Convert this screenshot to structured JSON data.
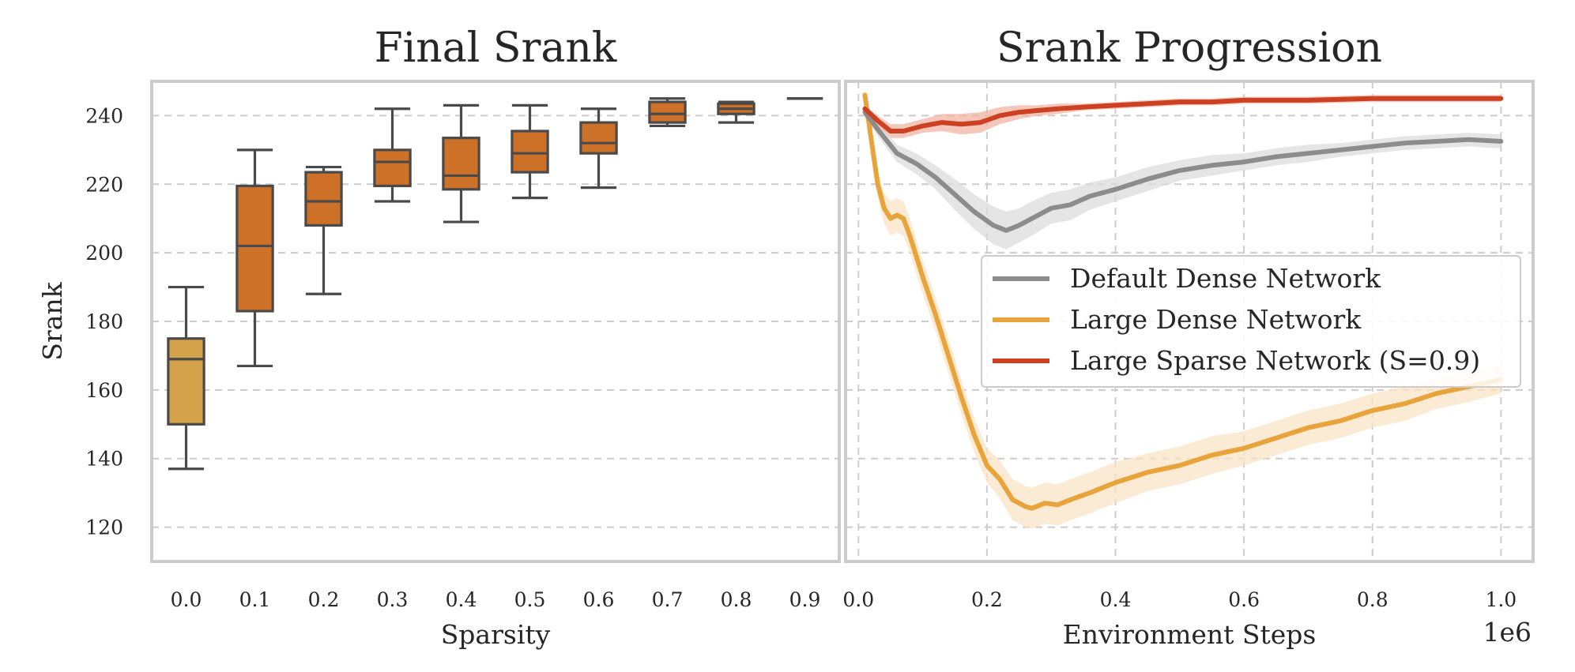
{
  "chart_data": [
    {
      "type": "box",
      "title": "Final Srank",
      "xlabel": "Sparsity",
      "ylabel": "Srank",
      "ylim": [
        110,
        250
      ],
      "yticks": [
        120,
        140,
        160,
        180,
        200,
        220,
        240
      ],
      "categories": [
        "0.0",
        "0.1",
        "0.2",
        "0.3",
        "0.4",
        "0.5",
        "0.6",
        "0.7",
        "0.8",
        "0.9"
      ],
      "boxes": [
        {
          "whislo": 137,
          "q1": 150,
          "med": 169,
          "q3": 175,
          "whishi": 190
        },
        {
          "whislo": 167,
          "q1": 183,
          "med": 202,
          "q3": 219.5,
          "whishi": 230
        },
        {
          "whislo": 188,
          "q1": 208,
          "med": 215,
          "q3": 223.5,
          "whishi": 225
        },
        {
          "whislo": 215,
          "q1": 219.5,
          "med": 226.5,
          "q3": 230,
          "whishi": 242
        },
        {
          "whislo": 209,
          "q1": 218.5,
          "med": 222.5,
          "q3": 233.5,
          "whishi": 243
        },
        {
          "whislo": 216,
          "q1": 223.5,
          "med": 229,
          "q3": 235.5,
          "whishi": 243
        },
        {
          "whislo": 219,
          "q1": 229,
          "med": 232,
          "q3": 238,
          "whishi": 242
        },
        {
          "whislo": 237,
          "q1": 238,
          "med": 240.5,
          "q3": 244,
          "whishi": 245
        },
        {
          "whislo": 238,
          "q1": 240.5,
          "med": 242,
          "q3": 243.5,
          "whishi": 244
        },
        {
          "whislo": 245,
          "q1": 245,
          "med": 245,
          "q3": 245,
          "whishi": 245
        }
      ],
      "colors": [
        "#d4a24a",
        "#cd7028",
        "#cd7028",
        "#cd7028",
        "#cd7028",
        "#cd7028",
        "#cd7028",
        "#cd7028",
        "#cd7028",
        "#cd7028"
      ]
    },
    {
      "type": "line",
      "title": "Srank Progression",
      "xlabel": "Environment Steps",
      "x_offset_label": "1e6",
      "xlim": [
        -0.02,
        1.05
      ],
      "ylim": [
        110,
        250
      ],
      "xticks": [
        "0.0",
        "0.2",
        "0.4",
        "0.6",
        "0.8",
        "1.0"
      ],
      "series": [
        {
          "name": "Default Dense Network",
          "color": "#8c8c8c",
          "band_color": "#dcdcdc",
          "x": [
            0.01,
            0.03,
            0.06,
            0.09,
            0.12,
            0.15,
            0.18,
            0.21,
            0.23,
            0.25,
            0.27,
            0.3,
            0.33,
            0.36,
            0.4,
            0.45,
            0.5,
            0.55,
            0.6,
            0.65,
            0.7,
            0.75,
            0.8,
            0.85,
            0.9,
            0.95,
            1.0
          ],
          "y": [
            241,
            236,
            229,
            226,
            222,
            217,
            212,
            208,
            206.5,
            208,
            210,
            213,
            214,
            216.5,
            218.5,
            221.5,
            224,
            225.5,
            226.5,
            228,
            229,
            230,
            231,
            232,
            232.5,
            233,
            232.5
          ],
          "band": [
            1.5,
            2,
            2.5,
            3,
            3.5,
            4.5,
            5,
            5.5,
            5.5,
            5,
            5,
            4.5,
            4.5,
            4,
            3.5,
            3.5,
            3,
            3,
            2.5,
            2.5,
            2.5,
            2,
            2,
            2,
            2,
            2,
            2
          ]
        },
        {
          "name": "Large Dense Network",
          "color": "#e8a43a",
          "band_color": "#fae3c6",
          "x": [
            0.01,
            0.02,
            0.03,
            0.04,
            0.05,
            0.06,
            0.07,
            0.08,
            0.1,
            0.12,
            0.14,
            0.16,
            0.18,
            0.2,
            0.22,
            0.24,
            0.26,
            0.27,
            0.29,
            0.31,
            0.33,
            0.36,
            0.4,
            0.45,
            0.5,
            0.55,
            0.6,
            0.65,
            0.7,
            0.75,
            0.8,
            0.85,
            0.9,
            0.95,
            1.0
          ],
          "y": [
            246,
            233,
            220,
            213,
            210,
            211,
            210,
            205,
            193,
            182,
            170,
            158,
            147,
            138,
            134,
            128,
            126,
            125.5,
            127,
            126.5,
            128,
            130,
            133,
            136,
            138,
            141,
            143,
            146,
            149,
            151,
            154,
            156,
            159,
            161,
            163
          ],
          "band": [
            2,
            3,
            4,
            4.5,
            5,
            5,
            5,
            5,
            5,
            5,
            5,
            5,
            5,
            5,
            5.5,
            6,
            6,
            6,
            6,
            6,
            6,
            6,
            6,
            5.5,
            5.5,
            5.5,
            5,
            5,
            5,
            5,
            5,
            5,
            4.5,
            4.5,
            4
          ]
        },
        {
          "name": "Large Sparse Network (S=0.9)",
          "color": "#cc4122",
          "band_color": "#f2b4a4",
          "x": [
            0.01,
            0.03,
            0.05,
            0.07,
            0.1,
            0.13,
            0.16,
            0.19,
            0.22,
            0.25,
            0.28,
            0.31,
            0.35,
            0.4,
            0.45,
            0.5,
            0.55,
            0.6,
            0.7,
            0.8,
            0.9,
            1.0
          ],
          "y": [
            242,
            238.5,
            235.5,
            235.5,
            237,
            238,
            237.5,
            238,
            240,
            241,
            241.5,
            242,
            242.5,
            243,
            243.5,
            244,
            244,
            244.5,
            244.5,
            245,
            245,
            245
          ],
          "band": [
            1,
            1.5,
            2,
            2,
            2,
            2.5,
            3,
            3,
            2.5,
            2,
            1.5,
            1.5,
            1,
            1,
            1,
            1,
            1,
            1,
            1,
            1,
            1,
            1
          ]
        }
      ]
    }
  ]
}
